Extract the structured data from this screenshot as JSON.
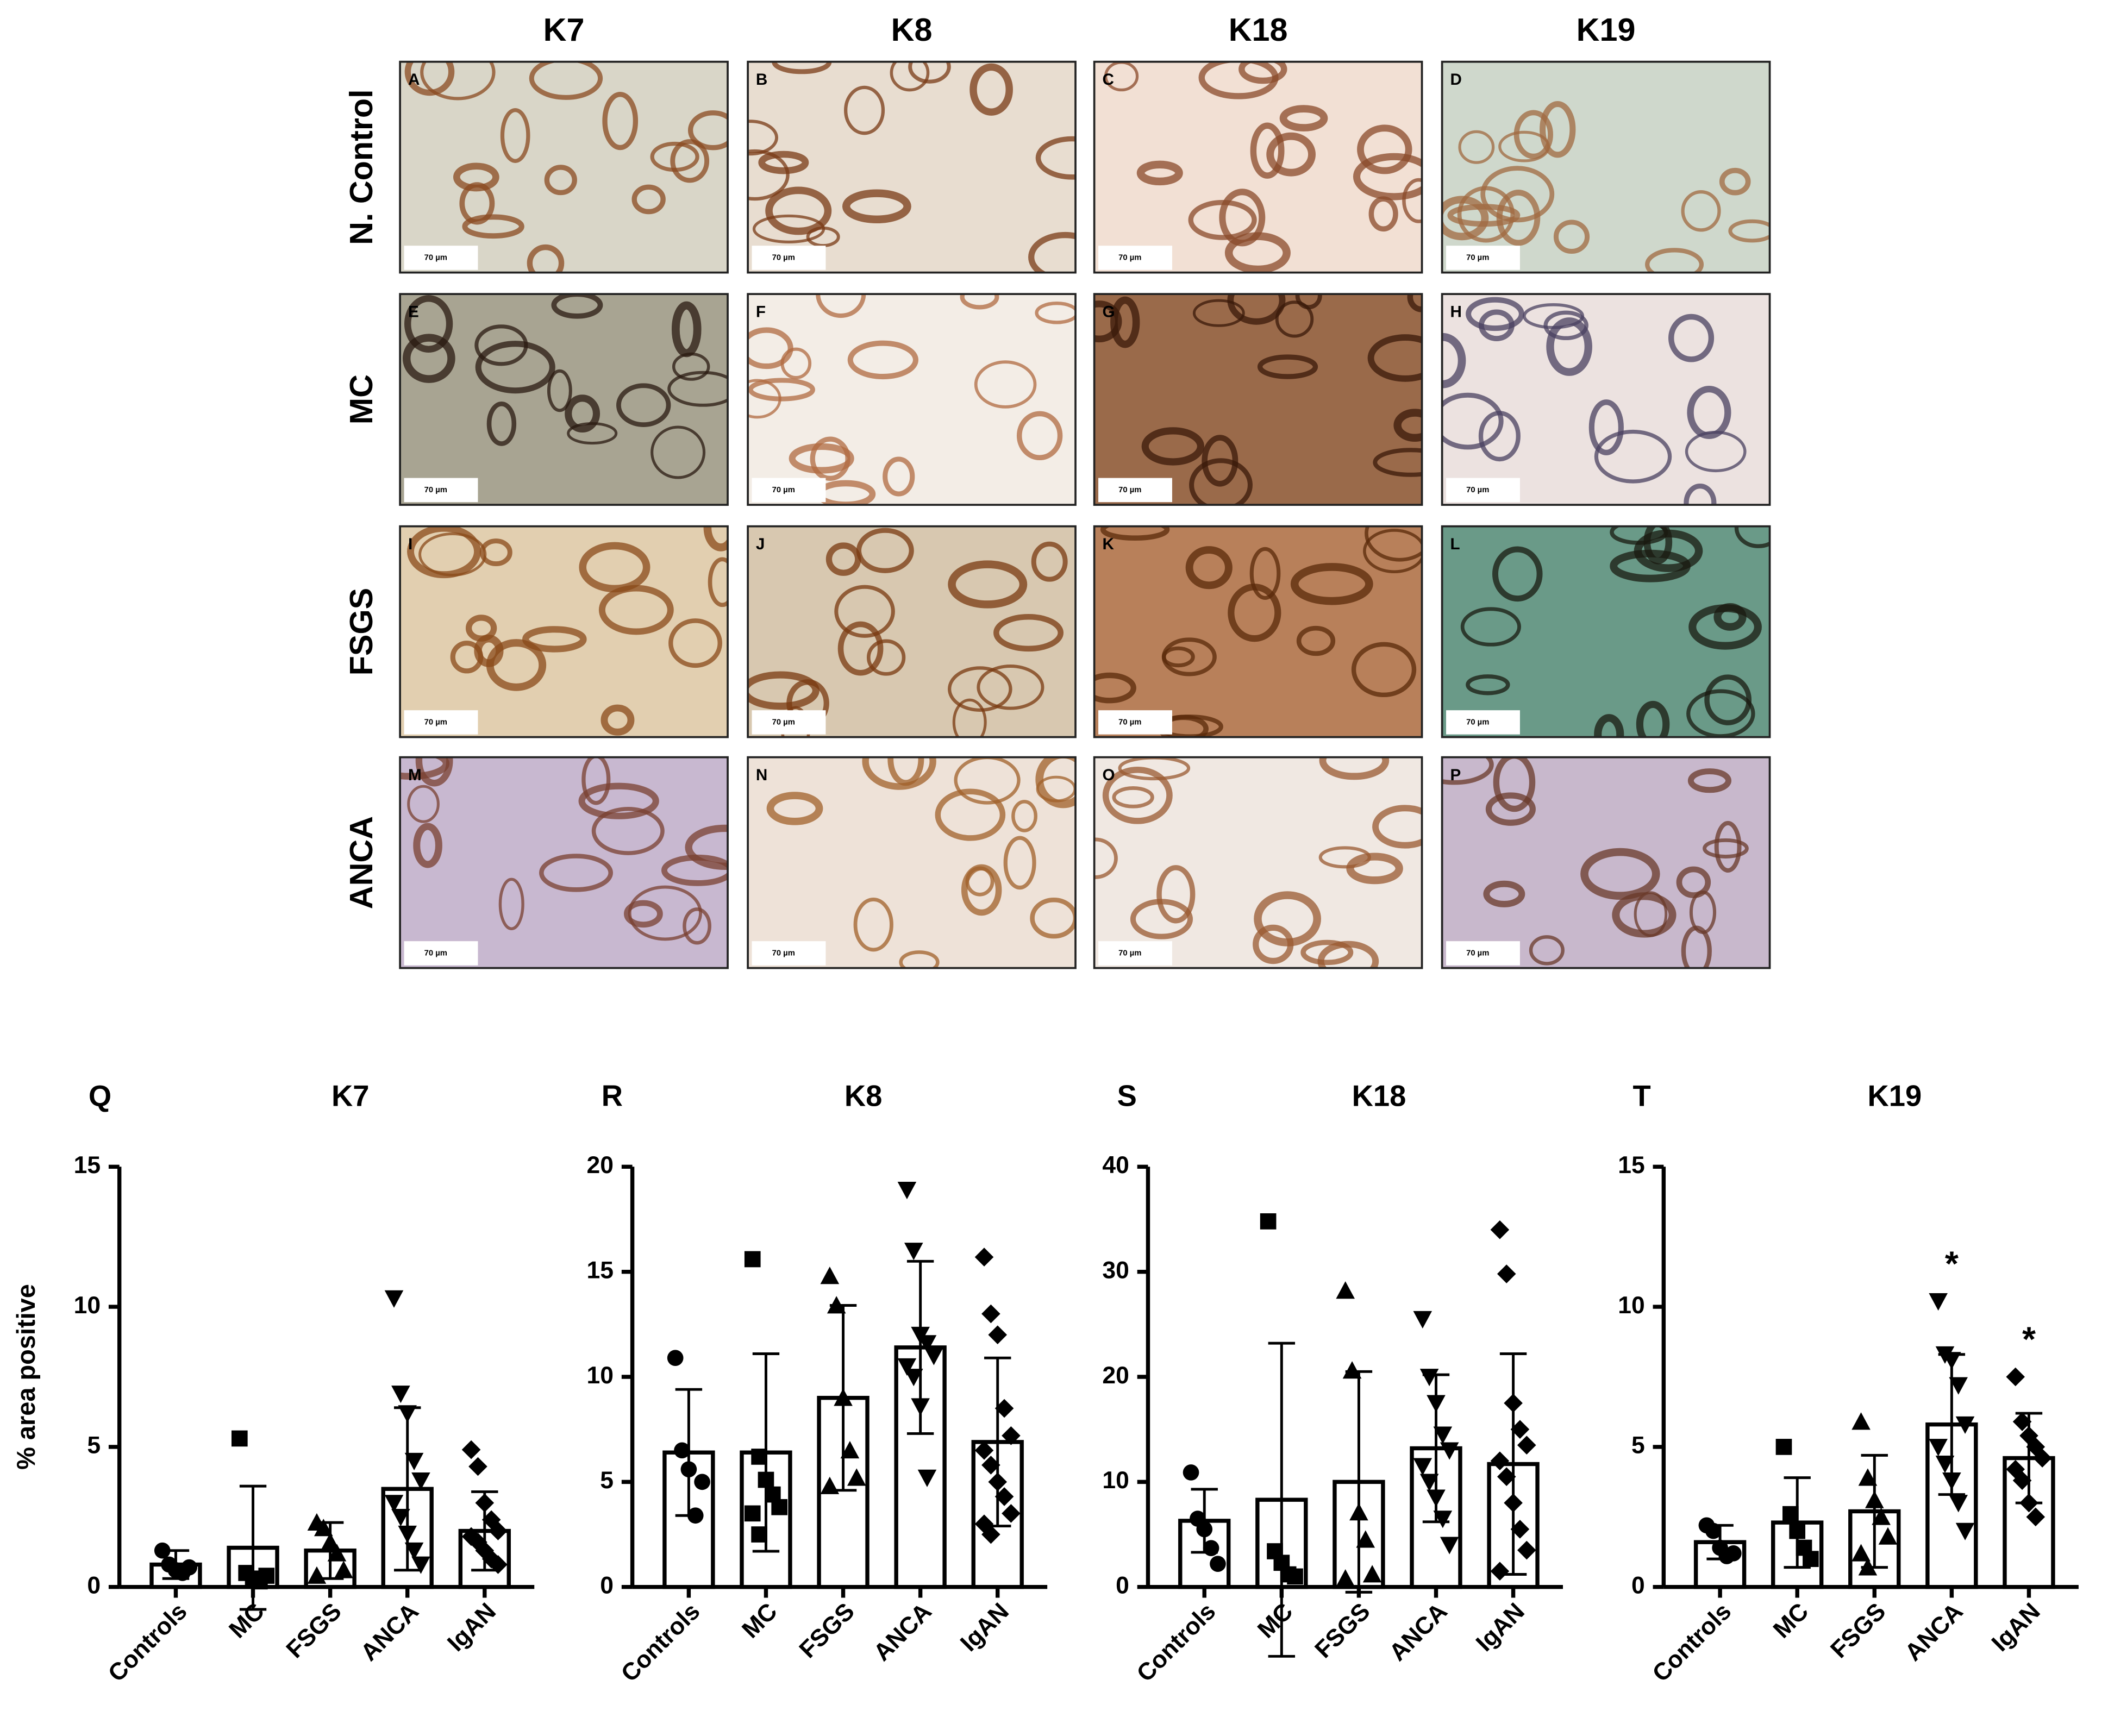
{
  "figure": {
    "columns": [
      "K7",
      "K8",
      "K18",
      "K19"
    ],
    "rows": [
      "N. Control",
      "MC",
      "FSGS",
      "ANCA"
    ],
    "panels": [
      {
        "letter": "A",
        "scale": "70 µm"
      },
      {
        "letter": "B",
        "scale": "70 µm"
      },
      {
        "letter": "C",
        "scale": "70 µm"
      },
      {
        "letter": "D",
        "scale": "70 µm"
      },
      {
        "letter": "E",
        "scale": "70 µm"
      },
      {
        "letter": "F",
        "scale": "70 µm"
      },
      {
        "letter": "G",
        "scale": "70 µm"
      },
      {
        "letter": "H",
        "scale": "70 µm"
      },
      {
        "letter": "I",
        "scale": "70 µm"
      },
      {
        "letter": "J",
        "scale": "70 µm"
      },
      {
        "letter": "K",
        "scale": "70 µm"
      },
      {
        "letter": "L",
        "scale": "70 µm"
      },
      {
        "letter": "M",
        "scale": "70 µm"
      },
      {
        "letter": "N",
        "scale": "70 µm"
      },
      {
        "letter": "O",
        "scale": "70 µm"
      },
      {
        "letter": "P",
        "scale": "70 µm"
      }
    ]
  },
  "chart_data": [
    {
      "type": "bar",
      "panel": "Q",
      "title": "K7",
      "ylabel": "% area positive",
      "color": "#000000",
      "categories": [
        "Controls",
        "MC",
        "FSGS",
        "ANCA",
        "IgAN"
      ],
      "markers": [
        "circle",
        "square",
        "triangle-up",
        "triangle-down",
        "diamond"
      ],
      "values": [
        0.8,
        1.4,
        1.3,
        3.5,
        2.0
      ],
      "errors": [
        0.5,
        2.2,
        1.0,
        2.9,
        1.4
      ],
      "points": [
        [
          1.3,
          0.8,
          0.6,
          0.5,
          0.7
        ],
        [
          5.3,
          0.5,
          0.3,
          0.2,
          0.4
        ],
        [
          2.3,
          2.1,
          1.6,
          1.2,
          0.6,
          0.4
        ],
        [
          10.3,
          6.9,
          6.2,
          4.5,
          3.8,
          3.0,
          2.5,
          1.9,
          1.3,
          0.8
        ],
        [
          4.9,
          4.3,
          3.0,
          2.4,
          2.0,
          1.8,
          1.6,
          1.3,
          1.0,
          0.8
        ]
      ],
      "ylim": [
        0,
        15
      ],
      "yticks": [
        0,
        5,
        10,
        15
      ]
    },
    {
      "type": "bar",
      "panel": "R",
      "title": "K8",
      "color": "#000000",
      "categories": [
        "Controls",
        "MC",
        "FSGS",
        "ANCA",
        "IgAN"
      ],
      "markers": [
        "circle",
        "square",
        "triangle-up",
        "triangle-down",
        "diamond"
      ],
      "values": [
        6.4,
        6.4,
        9.0,
        11.4,
        6.9
      ],
      "errors": [
        3.0,
        4.7,
        4.4,
        4.1,
        4.0
      ],
      "points": [
        [
          10.9,
          6.5,
          5.6,
          3.4,
          5.0
        ],
        [
          15.6,
          6.2,
          5.1,
          4.4,
          3.8,
          3.5,
          2.5
        ],
        [
          14.8,
          13.4,
          9.0,
          6.5,
          5.2,
          4.8
        ],
        [
          18.9,
          16.0,
          12.0,
          11.6,
          11.0,
          10.5,
          10.0,
          8.6,
          5.2
        ],
        [
          15.7,
          13.0,
          12.0,
          8.5,
          7.2,
          6.5,
          5.8,
          5.0,
          4.3,
          3.5,
          3.0,
          2.5
        ]
      ],
      "ylim": [
        0,
        20
      ],
      "yticks": [
        0,
        5,
        10,
        15,
        20
      ]
    },
    {
      "type": "bar",
      "panel": "S",
      "title": "K18",
      "color": "#000000",
      "categories": [
        "Controls",
        "MC",
        "FSGS",
        "ANCA",
        "IgAN"
      ],
      "markers": [
        "circle",
        "square",
        "triangle-up",
        "triangle-down",
        "diamond"
      ],
      "values": [
        6.3,
        8.3,
        10.0,
        13.2,
        11.7
      ],
      "errors": [
        3.0,
        14.9,
        10.5,
        7.0,
        10.5
      ],
      "points": [
        [
          10.9,
          6.5,
          5.5,
          3.7,
          2.2
        ],
        [
          34.8,
          3.4,
          2.3,
          1.2,
          1.0
        ],
        [
          28.2,
          20.6,
          7.1,
          4.5,
          1.2,
          0.8
        ],
        [
          25.5,
          20.0,
          17.5,
          14.5,
          13.0,
          11.5,
          10.0,
          8.5,
          6.5,
          4.0
        ],
        [
          34.0,
          29.8,
          17.5,
          15.0,
          13.5,
          12.0,
          10.5,
          8.0,
          5.5,
          3.5,
          1.5
        ]
      ],
      "ylim": [
        0,
        40
      ],
      "yticks": [
        0,
        10,
        20,
        30,
        40
      ]
    },
    {
      "type": "bar",
      "panel": "T",
      "title": "K19",
      "color": "#000000",
      "categories": [
        "Controls",
        "MC",
        "FSGS",
        "ANCA",
        "IgAN"
      ],
      "markers": [
        "circle",
        "square",
        "triangle-up",
        "triangle-down",
        "diamond"
      ],
      "values": [
        1.6,
        2.3,
        2.7,
        5.8,
        4.6
      ],
      "errors": [
        0.6,
        1.6,
        2.0,
        2.5,
        1.6
      ],
      "points": [
        [
          2.2,
          2.0,
          1.4,
          1.1,
          1.2
        ],
        [
          5.0,
          2.6,
          2.0,
          1.4,
          1.0
        ],
        [
          5.9,
          3.9,
          3.1,
          2.5,
          1.8,
          1.2,
          0.7
        ],
        [
          10.2,
          8.3,
          8.1,
          7.2,
          5.8,
          5.0,
          4.4,
          3.8,
          3.0,
          2.0
        ],
        [
          7.5,
          5.9,
          5.4,
          5.0,
          4.6,
          4.2,
          3.8,
          3.0,
          2.5
        ]
      ],
      "significance": [
        null,
        null,
        null,
        "*",
        "*"
      ],
      "ylim": [
        0,
        15
      ],
      "yticks": [
        0,
        5,
        10,
        15
      ]
    }
  ]
}
